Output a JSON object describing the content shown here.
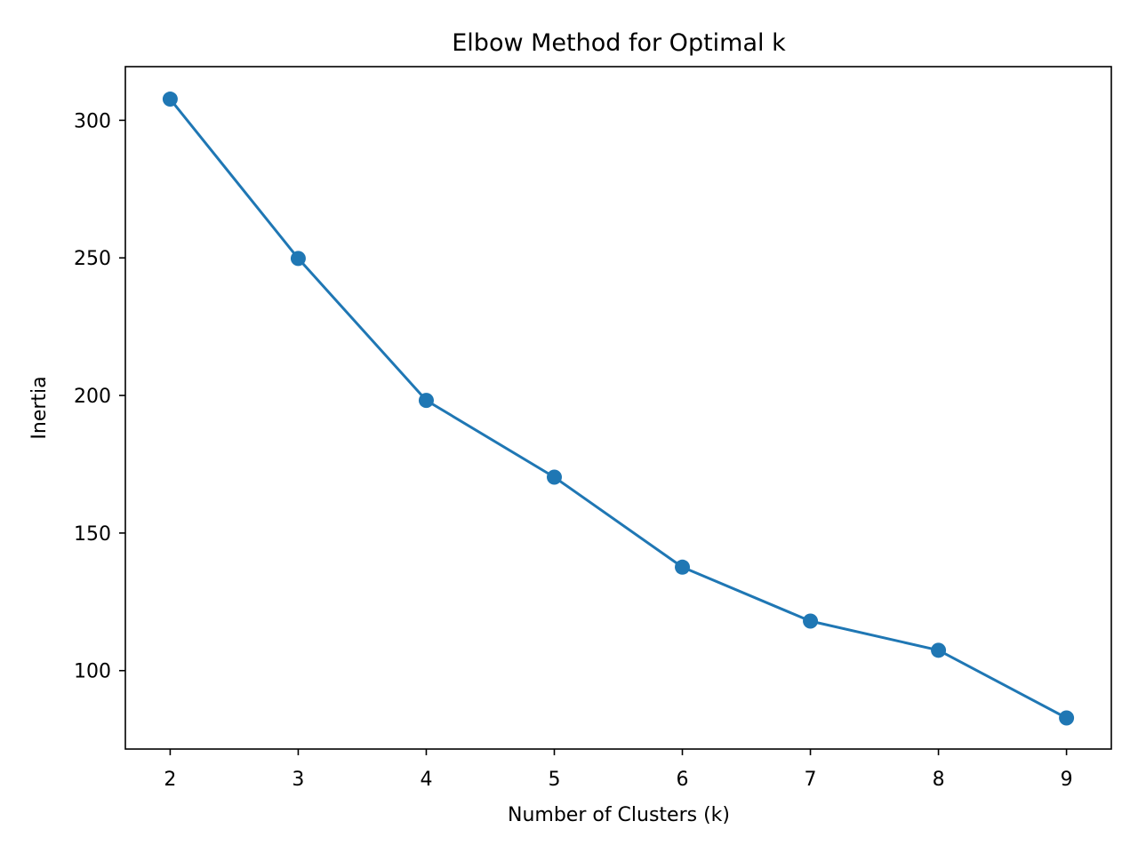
{
  "chart_data": {
    "type": "line",
    "title": "Elbow Method for Optimal k",
    "xlabel": "Number of Clusters (k)",
    "ylabel": "Inertia",
    "x": [
      2,
      3,
      4,
      5,
      6,
      7,
      8,
      9
    ],
    "series": [
      {
        "values": [
          307.7,
          249.8,
          198.2,
          170.3,
          137.6,
          118.0,
          107.4,
          82.8
        ],
        "color": "#1f77b4",
        "marker": "circle"
      }
    ],
    "xticks": [
      "2",
      "3",
      "4",
      "5",
      "6",
      "7",
      "8",
      "9"
    ],
    "yticks": [
      100,
      150,
      200,
      250,
      300
    ],
    "xlim": [
      1.65,
      9.35
    ],
    "ylim": [
      71.5,
      319.5
    ],
    "grid": false,
    "legend": "none"
  }
}
